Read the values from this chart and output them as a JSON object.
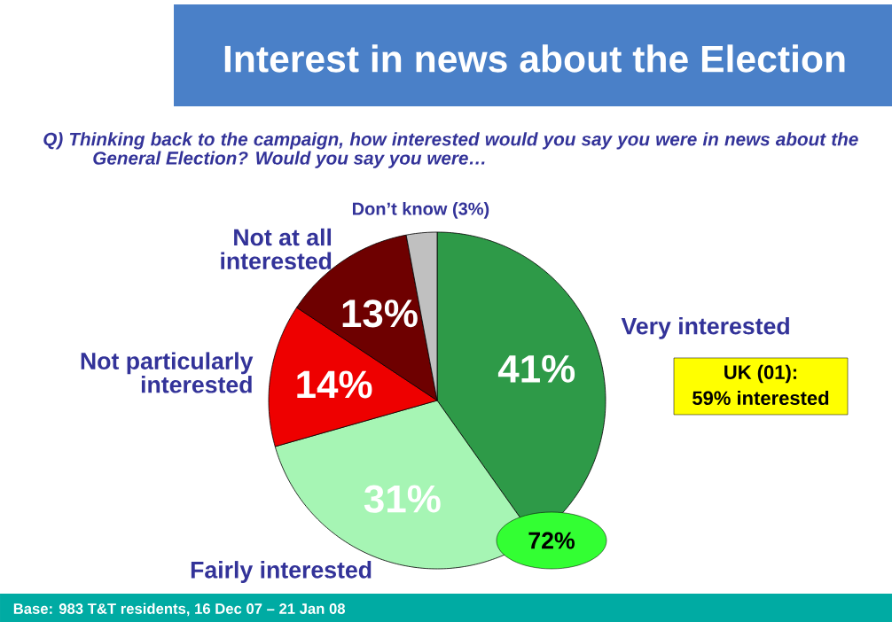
{
  "chart_data": {
    "type": "pie",
    "title": "Interest in news about the Election",
    "subtitle": "Q)  Thinking back to the campaign, how interested would you say you were in news about the General Election?  Would you say you were…",
    "categories": [
      "Very interested",
      "Fairly interested",
      "Not particularly interested",
      "Not at all interested",
      "Don’t know"
    ],
    "values": [
      41,
      31,
      14,
      13,
      3
    ],
    "value_labels": [
      "41%",
      "31%",
      "14%",
      "13%",
      "(3%)"
    ],
    "colors": [
      "#2e9a48",
      "#a6f5b4",
      "#ee0000",
      "#6e0000",
      "#c0c0c0"
    ],
    "annotations": [
      "UK (01):",
      "59% interested",
      "72%",
      "Base: 983 T&T residents, 16 Dec 07 – 21 Jan 08"
    ]
  }
}
